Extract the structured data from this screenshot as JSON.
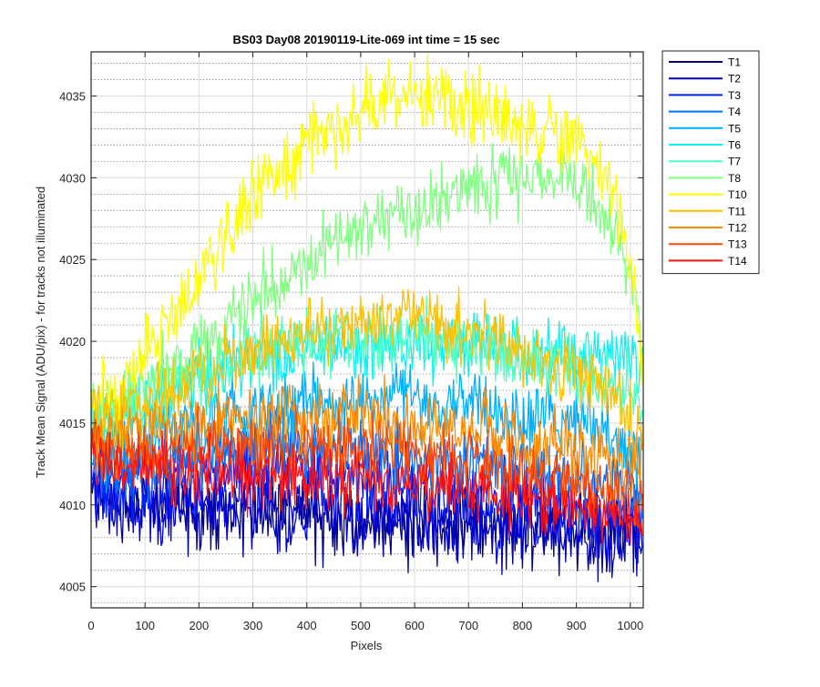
{
  "chart_data": {
    "type": "line",
    "title": "BS03 Day08 20190119-Lite-069 int time = 15 sec",
    "xlabel": "Pixels",
    "ylabel": "Track Mean Signal (ADU/pix) - for tracks not illuminated",
    "xlim": [
      0,
      1024
    ],
    "ylim": [
      4003.7,
      4037.7
    ],
    "xticks": [
      0,
      100,
      200,
      300,
      400,
      500,
      600,
      700,
      800,
      900,
      1000
    ],
    "yticks": [
      4005,
      4010,
      4015,
      4020,
      4025,
      4030,
      4035
    ],
    "y_minor_step": 1,
    "grid": true,
    "minor_grid": true,
    "legend_location": "outside-top-right",
    "noise_note": "each series is a dense noisy trace; profile points are the approximate mean signal along the pixel axis",
    "series": [
      {
        "name": "T1",
        "color": "#00008f",
        "noise": 1.5,
        "x": [
          0,
          50,
          100,
          200,
          300,
          400,
          500,
          600,
          700,
          800,
          900,
          1000,
          1024
        ],
        "y": [
          4010.8,
          4010.2,
          4010.0,
          4009.7,
          4009.5,
          4009.3,
          4009.1,
          4008.9,
          4008.7,
          4008.5,
          4008.3,
          4008.0,
          4008.1
        ]
      },
      {
        "name": "T2",
        "color": "#0000cf",
        "noise": 1.5,
        "x": [
          0,
          50,
          100,
          200,
          300,
          400,
          500,
          600,
          700,
          800,
          900,
          1000,
          1024
        ],
        "y": [
          4011.0,
          4010.4,
          4010.2,
          4009.9,
          4009.7,
          4009.5,
          4009.3,
          4009.1,
          4008.9,
          4008.7,
          4008.5,
          4008.2,
          4008.3
        ]
      },
      {
        "name": "T3",
        "color": "#0020ff",
        "noise": 1.4,
        "x": [
          0,
          50,
          100,
          200,
          300,
          400,
          500,
          600,
          700,
          800,
          900,
          1000,
          1024
        ],
        "y": [
          4011.6,
          4011.2,
          4011.4,
          4011.8,
          4012.0,
          4012.0,
          4011.6,
          4011.2,
          4010.6,
          4010.2,
          4009.8,
          4009.4,
          4009.5
        ]
      },
      {
        "name": "T4",
        "color": "#0070ff",
        "noise": 1.4,
        "x": [
          0,
          50,
          100,
          200,
          300,
          400,
          500,
          600,
          700,
          800,
          900,
          1000,
          1024
        ],
        "y": [
          4012.6,
          4012.2,
          4012.6,
          4013.2,
          4013.6,
          4013.6,
          4013.4,
          4013.0,
          4012.6,
          4012.2,
          4011.8,
          4011.0,
          4010.4
        ]
      },
      {
        "name": "T5",
        "color": "#00b0ff",
        "noise": 1.4,
        "x": [
          0,
          50,
          100,
          200,
          300,
          400,
          500,
          600,
          700,
          800,
          900,
          1000,
          1024
        ],
        "y": [
          4013.6,
          4013.4,
          4014.0,
          4015.0,
          4015.8,
          4016.2,
          4016.4,
          4016.2,
          4016.0,
          4015.6,
          4015.0,
          4013.8,
          4012.8
        ]
      },
      {
        "name": "T6",
        "color": "#10f0f0",
        "noise": 1.3,
        "x": [
          0,
          50,
          100,
          200,
          300,
          400,
          500,
          600,
          700,
          800,
          900,
          960,
          1000,
          1024
        ],
        "y": [
          4015.0,
          4015.0,
          4016.0,
          4017.6,
          4018.8,
          4019.6,
          4020.0,
          4020.0,
          4019.8,
          4019.4,
          4019.2,
          4019.4,
          4019.6,
          4018.0
        ]
      },
      {
        "name": "T7",
        "color": "#50ffc0",
        "noise": 1.3,
        "x": [
          0,
          50,
          100,
          200,
          300,
          400,
          500,
          600,
          700,
          800,
          900,
          960,
          1000,
          1024
        ],
        "y": [
          4015.6,
          4015.4,
          4016.4,
          4018.2,
          4019.4,
          4020.0,
          4020.2,
          4020.0,
          4019.6,
          4019.0,
          4018.2,
          4017.6,
          4016.8,
          4015.4
        ]
      },
      {
        "name": "T8",
        "color": "#80ff80",
        "noise": 1.3,
        "x": [
          0,
          50,
          100,
          150,
          200,
          250,
          300,
          350,
          400,
          450,
          500,
          550,
          600,
          650,
          700,
          750,
          800,
          850,
          900,
          940,
          980,
          1000,
          1024
        ],
        "y": [
          4016.2,
          4016.0,
          4017.2,
          4018.4,
          4019.6,
          4021.0,
          4022.4,
          4023.8,
          4025.0,
          4026.0,
          4026.8,
          4027.6,
          4028.2,
          4028.8,
          4029.2,
          4029.6,
          4030.0,
          4030.2,
          4029.8,
          4028.4,
          4026.2,
          4024.2,
          4019.2
        ]
      },
      {
        "name": "T10",
        "color": "#ffff00",
        "noise": 1.4,
        "x": [
          0,
          50,
          100,
          150,
          200,
          250,
          300,
          350,
          400,
          450,
          500,
          550,
          600,
          650,
          700,
          750,
          800,
          850,
          900,
          940,
          980,
          1000,
          1024
        ],
        "y": [
          4017.0,
          4016.6,
          4019.0,
          4021.6,
          4024.0,
          4026.4,
          4028.4,
          4030.4,
          4032.0,
          4033.2,
          4034.2,
          4034.8,
          4035.0,
          4034.8,
          4034.4,
          4034.0,
          4033.6,
          4033.0,
          4032.2,
          4030.6,
          4028.0,
          4025.0,
          4018.8
        ]
      },
      {
        "name": "T11",
        "color": "#ffc000",
        "noise": 1.3,
        "x": [
          0,
          50,
          100,
          200,
          300,
          400,
          500,
          550,
          600,
          700,
          800,
          900,
          960,
          1000,
          1024
        ],
        "y": [
          4016.0,
          4015.4,
          4016.2,
          4017.8,
          4019.4,
          4020.6,
          4021.4,
          4021.6,
          4021.4,
          4020.4,
          4019.4,
          4018.0,
          4016.8,
          4015.4,
          4013.8
        ]
      },
      {
        "name": "T12",
        "color": "#ff8c00",
        "noise": 1.3,
        "x": [
          0,
          50,
          100,
          200,
          300,
          400,
          500,
          600,
          700,
          800,
          900,
          1000,
          1024
        ],
        "y": [
          4014.6,
          4014.2,
          4014.4,
          4014.8,
          4015.2,
          4015.4,
          4015.4,
          4015.0,
          4014.6,
          4014.0,
          4013.2,
          4012.4,
          4011.8
        ]
      },
      {
        "name": "T13",
        "color": "#ff4800",
        "noise": 1.3,
        "x": [
          0,
          50,
          100,
          200,
          300,
          400,
          500,
          600,
          700,
          800,
          900,
          1000,
          1024
        ],
        "y": [
          4013.6,
          4013.2,
          4013.2,
          4013.4,
          4013.6,
          4013.6,
          4013.4,
          4013.0,
          4012.6,
          4012.0,
          4011.4,
          4010.8,
          4010.4
        ]
      },
      {
        "name": "T14",
        "color": "#ff1010",
        "noise": 1.2,
        "x": [
          0,
          50,
          100,
          200,
          300,
          400,
          500,
          600,
          700,
          800,
          900,
          1000,
          1024
        ],
        "y": [
          4012.8,
          4012.4,
          4012.2,
          4012.0,
          4011.8,
          4011.6,
          4011.4,
          4011.2,
          4010.8,
          4010.4,
          4009.8,
          4009.2,
          4009.0
        ]
      }
    ]
  }
}
